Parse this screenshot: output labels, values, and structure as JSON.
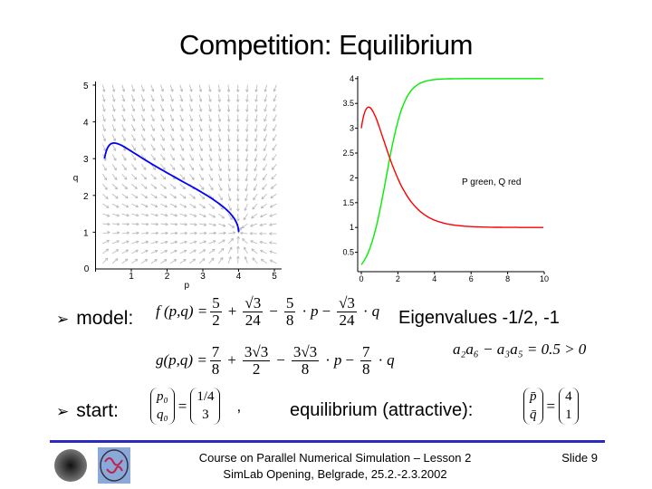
{
  "title": "Competition: Equilibrium",
  "phase_plot": {
    "xlabel": "p",
    "ylabel": "q",
    "xticks": [
      "0",
      "1",
      "2",
      "3",
      "4",
      "5"
    ],
    "yticks": [
      "1",
      "2",
      "3",
      "4",
      "5"
    ],
    "trajectory_color": "#0000ff",
    "field_color": "#b8b8b8",
    "start": [
      0.25,
      3
    ],
    "end": [
      4,
      1
    ]
  },
  "time_plot": {
    "xticks": [
      "0",
      "2",
      "4",
      "6",
      "8",
      "10"
    ],
    "yticks": [
      "0.5",
      "1",
      "1.5",
      "2",
      "2.5",
      "3",
      "3.5",
      "4"
    ],
    "legend_text": "P green, Q red",
    "p_color": "#00ee00",
    "q_color": "#ff0000",
    "xlim": [
      0,
      10
    ],
    "ylim": [
      0.25,
      4
    ]
  },
  "model": {
    "bullet": "model:",
    "f_lhs": "f (p,q) =",
    "g_lhs": "g(p,q) =",
    "eigen": "Eigenvalues -1/2, -1",
    "condition": "a₂a₆ − a₃a₅ = 0.5 > 0"
  },
  "start": {
    "bullet": "start:",
    "p0": "p₀",
    "q0": "q₀",
    "p0_val": "1/4",
    "q0_val": "3",
    "comma": ",",
    "equilibrium": "equilibrium (attractive):",
    "pbar": "p̄",
    "qbar": "q̄",
    "pbar_val": "4",
    "qbar_val": "1"
  },
  "footer": {
    "line1": "Course on Parallel Numerical Simulation – Lesson 2",
    "line2": "SimLab Opening, Belgrade, 25.2.-2.3.2002",
    "slide": "Slide 9"
  },
  "colors": {
    "rule": "#2a2ac0"
  }
}
